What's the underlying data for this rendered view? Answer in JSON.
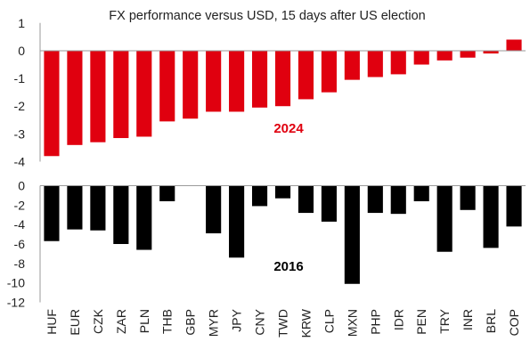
{
  "chart_data": [
    {
      "type": "bar",
      "title": "FX performance versus USD, 15 days after US election",
      "panel_label": "2024",
      "color": "#e0000f",
      "ylim": [
        -4,
        1
      ],
      "yticks": [
        1,
        0,
        -1,
        -2,
        -3,
        -4
      ],
      "categories": [
        "HUF",
        "EUR",
        "CZK",
        "ZAR",
        "PLN",
        "THB",
        "GBP",
        "MYR",
        "JPY",
        "CNY",
        "TWD",
        "KRW",
        "CLP",
        "MXN",
        "PHP",
        "IDR",
        "PEN",
        "TRY",
        "INR",
        "BRL",
        "COP"
      ],
      "values": [
        -3.8,
        -3.4,
        -3.3,
        -3.15,
        -3.1,
        -2.55,
        -2.45,
        -2.2,
        -2.2,
        -2.05,
        -2.0,
        -1.75,
        -1.5,
        -1.05,
        -0.95,
        -0.85,
        -0.5,
        -0.35,
        -0.25,
        -0.1,
        0.4
      ]
    },
    {
      "type": "bar",
      "title": "",
      "panel_label": "2016",
      "color": "#000000",
      "ylim": [
        -12,
        0
      ],
      "yticks": [
        0,
        -2,
        -4,
        -6,
        -8,
        -10,
        -12
      ],
      "categories": [
        "HUF",
        "EUR",
        "CZK",
        "ZAR",
        "PLN",
        "THB",
        "GBP",
        "MYR",
        "JPY",
        "CNY",
        "TWD",
        "KRW",
        "CLP",
        "MXN",
        "PHP",
        "IDR",
        "PEN",
        "TRY",
        "INR",
        "BRL",
        "COP"
      ],
      "values": [
        -5.7,
        -4.5,
        -4.6,
        -6.0,
        -6.6,
        -1.6,
        null,
        -4.9,
        -7.4,
        -2.1,
        -1.3,
        -2.8,
        -3.7,
        -10.1,
        -2.8,
        -2.9,
        -1.6,
        -6.8,
        -2.5,
        -6.4,
        -4.2
      ]
    }
  ]
}
